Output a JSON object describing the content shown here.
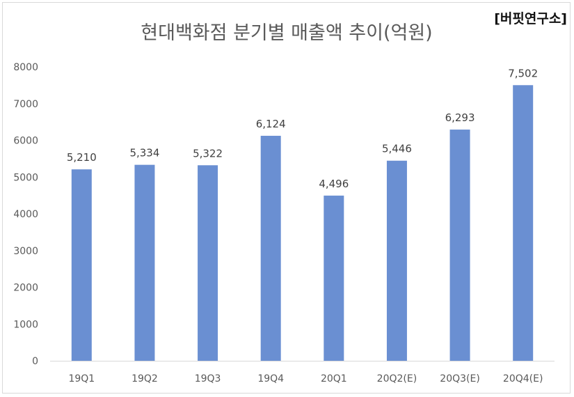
{
  "header": {
    "source_tag": "[버핏연구소]"
  },
  "chart_data": {
    "type": "bar",
    "title": "현대백화점 분기별 매출액 추이(억원)",
    "xlabel": "",
    "ylabel": "",
    "categories": [
      "19Q1",
      "19Q2",
      "19Q3",
      "19Q4",
      "20Q1",
      "20Q2(E)",
      "20Q3(E)",
      "20Q4(E)"
    ],
    "values": [
      5210,
      5334,
      5322,
      6124,
      4496,
      5446,
      6293,
      7502
    ],
    "data_labels": [
      "5,210",
      "5,334",
      "5,322",
      "6,124",
      "4,496",
      "5,446",
      "6,293",
      "7,502"
    ],
    "ylim": [
      0,
      8000
    ],
    "yticks": [
      0,
      1000,
      2000,
      3000,
      4000,
      5000,
      6000,
      7000,
      8000
    ],
    "ytick_labels": [
      "0",
      "1000",
      "2000",
      "3000",
      "4000",
      "5000",
      "6000",
      "7000",
      "8000"
    ],
    "grid": false,
    "legend": "none",
    "colors": {
      "bar": "#6a8fd2",
      "axis": "#d9d9d9"
    }
  }
}
